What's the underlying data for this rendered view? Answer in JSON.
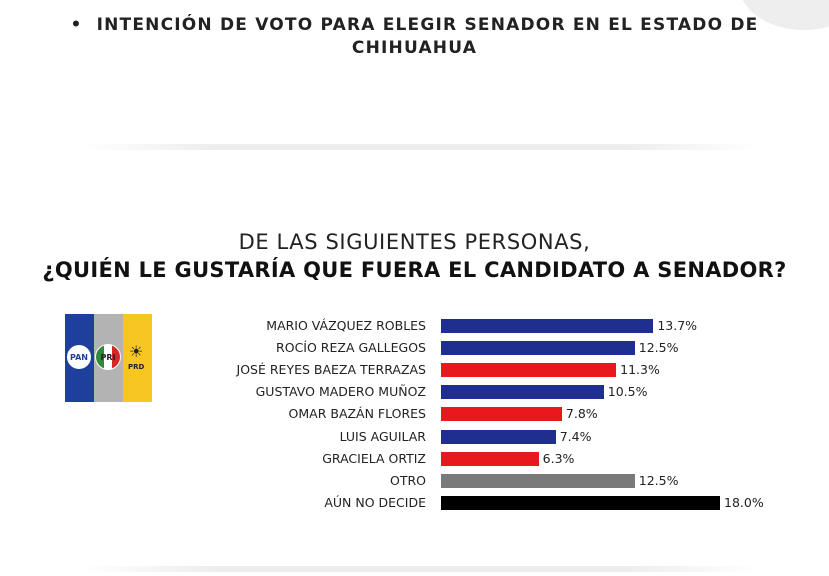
{
  "header": {
    "bullet": "•",
    "line1": "INTENCIÓN DE VOTO PARA ELEGIR SENADOR EN EL ESTADO DE",
    "line2": "CHIHUAHUA"
  },
  "logo": {
    "pan": "PAN",
    "pri": "PRI",
    "prd_sun": "☀",
    "prd": "PRD"
  },
  "chart_data": {
    "type": "bar",
    "orientation": "horizontal",
    "title": "DE LAS SIGUIENTES PERSONAS,",
    "subtitle": "¿QUIÉN LE GUSTARÍA QUE FUERA EL CANDIDATO  A SENADOR?",
    "unit": "%",
    "categories": [
      "MARIO VÁZQUEZ ROBLES",
      "ROCÍO REZA GALLEGOS",
      "JOSÉ REYES BAEZA TERRAZAS",
      "GUSTAVO  MADERO MUÑOZ",
      "OMAR BAZÁN FLORES",
      "LUIS AGUILAR",
      "GRACIELA ORTIZ",
      "OTRO",
      "AÚN NO DECIDE"
    ],
    "values": [
      13.7,
      12.5,
      11.3,
      10.5,
      7.8,
      7.4,
      6.3,
      12.5,
      18.0
    ],
    "labels": [
      "13.7%",
      "12.5%",
      "11.3%",
      "10.5%",
      "7.8%",
      "7.4%",
      "6.3%",
      "12.5%",
      "18.0%"
    ],
    "colors": [
      "#1f2f8f",
      "#1f2f8f",
      "#e8191c",
      "#1f2f8f",
      "#e8191c",
      "#1f2f8f",
      "#e8191c",
      "#7a7a7a",
      "#000000"
    ],
    "xlim": [
      0,
      18.0
    ]
  },
  "colors": {
    "pan": "#1f3f9c",
    "pri": "#b3b3b3",
    "prd": "#f7c623"
  }
}
